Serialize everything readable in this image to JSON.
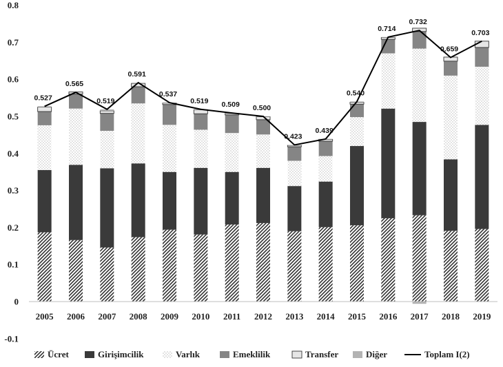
{
  "chart_data": {
    "type": "bar",
    "stacked": true,
    "categories": [
      "2005",
      "2006",
      "2007",
      "2008",
      "2009",
      "2010",
      "2011",
      "2012",
      "2013",
      "2014",
      "2015",
      "2016",
      "2017",
      "2018",
      "2019"
    ],
    "ylim": [
      -0.1,
      0.8
    ],
    "yticks": [
      -0.1,
      0,
      0.1,
      0.2,
      0.3,
      0.4,
      0.5,
      0.6,
      0.7,
      0.8
    ],
    "ytick_labels": [
      "-0.1",
      "0",
      "0.1",
      "0.2",
      "0.3",
      "0.4",
      "0.5",
      "0.6",
      "0.7",
      "0.8"
    ],
    "grid": false,
    "legend_position": "bottom",
    "series": [
      {
        "name": "Ücret",
        "values": [
          0.187,
          0.166,
          0.146,
          0.174,
          0.194,
          0.181,
          0.208,
          0.212,
          0.19,
          0.201,
          0.206,
          0.225,
          0.233,
          0.191,
          0.196
        ],
        "fill": "hatch",
        "color": "#333333"
      },
      {
        "name": "Girişimcilik",
        "values": [
          0.168,
          0.203,
          0.214,
          0.199,
          0.156,
          0.18,
          0.142,
          0.149,
          0.122,
          0.123,
          0.214,
          0.296,
          0.252,
          0.193,
          0.281
        ],
        "fill": "solid",
        "color": "#3a3a3a"
      },
      {
        "name": "Varlık",
        "values": [
          0.121,
          0.152,
          0.101,
          0.162,
          0.127,
          0.103,
          0.105,
          0.09,
          0.068,
          0.069,
          0.078,
          0.149,
          0.198,
          0.226,
          0.157
        ],
        "fill": "dots",
        "color": "#ffffff"
      },
      {
        "name": "Emeklilik",
        "values": [
          0.037,
          0.039,
          0.047,
          0.045,
          0.055,
          0.043,
          0.049,
          0.04,
          0.038,
          0.04,
          0.035,
          0.038,
          0.046,
          0.039,
          0.052
        ],
        "fill": "solid",
        "color": "#858585"
      },
      {
        "name": "Transfer",
        "values": [
          0.012,
          0.006,
          0.007,
          0.009,
          0.004,
          0.011,
          0.004,
          0.008,
          0.004,
          0.005,
          0.005,
          0.005,
          0.009,
          0.011,
          0.017
        ],
        "fill": "solid",
        "color": "#e6e6e6"
      },
      {
        "name": "Diğer",
        "values": [
          0.002,
          -0.001,
          0.004,
          0.002,
          0.001,
          0.001,
          0.001,
          0.001,
          0.001,
          0.001,
          0.002,
          0.001,
          -0.006,
          -0.001,
          0.0
        ],
        "fill": "solid",
        "color": "#b3b3b3"
      }
    ],
    "total": {
      "name": "Toplam I(2)",
      "values": [
        0.527,
        0.565,
        0.519,
        0.591,
        0.537,
        0.519,
        0.509,
        0.5,
        0.423,
        0.439,
        0.54,
        0.714,
        0.732,
        0.659,
        0.703
      ],
      "labels": [
        "0.527",
        "0.565",
        "0.519",
        "0.591",
        "0.537",
        "0.519",
        "0.509",
        "0.500",
        "0.423",
        "0.439",
        "0.540",
        "0.714",
        "0.732",
        "0.659",
        "0.703"
      ],
      "color": "#000000"
    }
  }
}
